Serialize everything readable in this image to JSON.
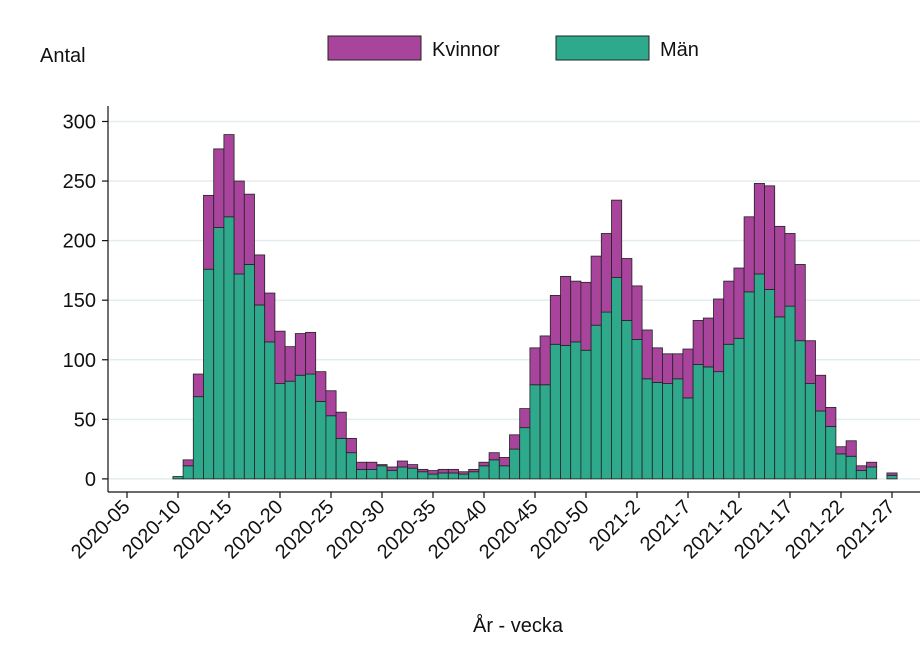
{
  "chart_data": {
    "type": "stacked_bar",
    "ylabel": "Antal",
    "xlabel": "År - vecka",
    "categories": [
      "2020-05",
      null,
      null,
      null,
      null,
      "2020-10",
      null,
      null,
      null,
      null,
      "2020-15",
      null,
      null,
      null,
      null,
      "2020-20",
      null,
      null,
      null,
      null,
      "2020-25",
      null,
      null,
      null,
      null,
      "2020-30",
      null,
      null,
      null,
      null,
      "2020-35",
      null,
      null,
      null,
      null,
      "2020-40",
      null,
      null,
      null,
      null,
      "2020-45",
      null,
      null,
      null,
      null,
      "2020-50",
      null,
      null,
      null,
      null,
      "2021-2",
      null,
      null,
      null,
      null,
      "2021-7",
      null,
      null,
      null,
      null,
      "2021-12",
      null,
      null,
      null,
      null,
      "2021-17",
      null,
      null,
      null,
      null,
      "2021-22",
      null,
      null,
      null,
      null,
      "2021-27"
    ],
    "series": [
      {
        "name": "Kvinnor",
        "color": "#a8449c",
        "values": [
          null,
          null,
          null,
          null,
          null,
          0,
          5,
          19,
          62,
          66,
          69,
          78,
          59,
          42,
          41,
          44,
          29,
          35,
          35,
          25,
          21,
          22,
          12,
          6,
          6,
          1,
          3,
          5,
          3,
          2,
          3,
          3,
          3,
          2,
          2,
          3,
          6,
          7,
          12,
          16,
          31,
          41,
          41,
          58,
          51,
          57,
          58,
          66,
          65,
          52,
          45,
          41,
          29,
          25,
          21,
          41,
          37,
          41,
          61,
          53,
          59,
          63,
          76,
          87,
          76,
          61,
          64,
          36,
          30,
          16,
          6,
          13,
          4,
          4,
          null,
          2
        ]
      },
      {
        "name": "Män",
        "color": "#2fa98c",
        "values": [
          null,
          null,
          null,
          null,
          null,
          2,
          11,
          69,
          176,
          211,
          220,
          172,
          180,
          146,
          115,
          80,
          82,
          87,
          88,
          65,
          53,
          34,
          22,
          8,
          8,
          11,
          7,
          10,
          9,
          6,
          4,
          5,
          5,
          4,
          6,
          11,
          16,
          11,
          25,
          43,
          79,
          79,
          113,
          112,
          115,
          108,
          129,
          140,
          169,
          133,
          117,
          84,
          81,
          80,
          84,
          68,
          96,
          94,
          90,
          113,
          118,
          157,
          172,
          159,
          136,
          145,
          116,
          80,
          57,
          44,
          21,
          19,
          7,
          10,
          null,
          3
        ]
      }
    ],
    "ylim": [
      -11,
      313
    ],
    "yticks": [
      0,
      50,
      100,
      150,
      200,
      250,
      300
    ],
    "grid": true
  }
}
